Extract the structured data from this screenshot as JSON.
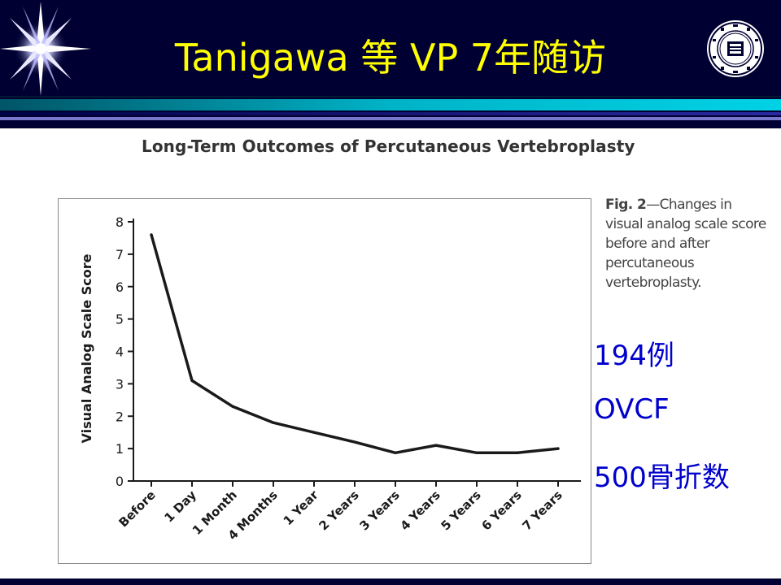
{
  "slide": {
    "title": "Tanigawa 等 VP 7年随访"
  },
  "paper_title": "Long-Term Outcomes of Percutaneous Vertebroplasty",
  "caption": {
    "fig_label": "Fig. 2",
    "text": "—Changes in visual analog scale score before and after percutaneous vertebroplasty."
  },
  "stats": {
    "cases": "194例",
    "disease": "OVCF",
    "fractures": "500骨折数"
  },
  "logo": {
    "icon": "university-seal-icon"
  },
  "colors": {
    "header_bg": "#000033",
    "title": "#ffff00",
    "stats_text": "#0000cc",
    "line": "#1a1a1a"
  },
  "chart_data": {
    "type": "line",
    "title": "",
    "xlabel": "",
    "ylabel": "Visual Analog Scale Score",
    "categories": [
      "Before",
      "1 Day",
      "1 Month",
      "4 Months",
      "1 Year",
      "2 Years",
      "3 Years",
      "4 Years",
      "5 Years",
      "6 Years",
      "7 Years"
    ],
    "values": [
      7.6,
      3.1,
      2.3,
      1.8,
      1.5,
      1.2,
      0.87,
      1.1,
      0.87,
      0.87,
      1.0
    ],
    "ylim": [
      0,
      8
    ],
    "yticks": [
      "0",
      "1",
      "2",
      "3",
      "4",
      "5",
      "6",
      "7",
      "8"
    ],
    "grid": false,
    "legend": "none"
  }
}
